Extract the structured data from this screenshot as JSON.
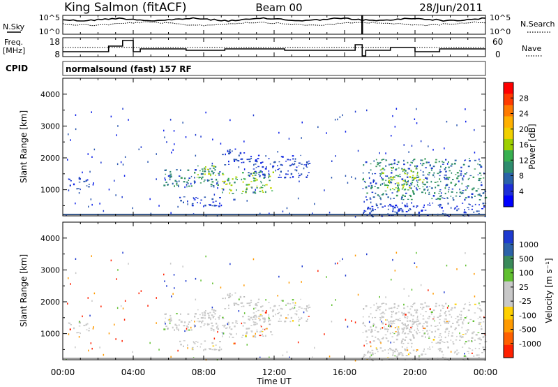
{
  "header": {
    "station": "King Salmon (fitACF)",
    "beam": "Beam 00",
    "date": "28/Jun/2011"
  },
  "noise_panel": {
    "left_label": "N.Sky",
    "right_label": "N.Search",
    "left_ticks": [
      "10^5",
      "10^0"
    ],
    "right_ticks": [
      "10^5",
      "10^0"
    ]
  },
  "freq_panel": {
    "left_label_1": "Freq.",
    "left_label_2": "[MHz]",
    "right_label": "Nave",
    "left_ticks": [
      "18",
      "8"
    ],
    "right_ticks": [
      "60",
      "0"
    ]
  },
  "cpid": {
    "label": "CPID",
    "program": "normalsound (fast) 157 RF"
  },
  "power_panel": {
    "ylabel": "Slant Range [km]",
    "yticks": [
      "4000",
      "3000",
      "2000",
      "1000"
    ],
    "cbar_label": "Power [dB]",
    "cbar_ticks": [
      "28",
      "24",
      "20",
      "16",
      "12",
      "8",
      "4"
    ],
    "cbar_colors": [
      "#ff0000",
      "#ff3b00",
      "#ff7a00",
      "#ffb000",
      "#f0d000",
      "#9ed000",
      "#38b050",
      "#2e8c6e",
      "#2a62a8",
      "#1e2fd8",
      "#0000ff"
    ]
  },
  "velocity_panel": {
    "ylabel": "Slant Range [km]",
    "yticks": [
      "4000",
      "3000",
      "2000",
      "1000"
    ],
    "cbar_label": "Velocity [m s⁻¹]",
    "cbar_ticks": [
      "1000",
      "500",
      "100",
      "25",
      "-25",
      "-100",
      "-500",
      "-1000"
    ],
    "cbar_colors": [
      "#1e3ad0",
      "#2c62a8",
      "#3a8a5a",
      "#60c030",
      "#c8c8c8",
      "#c8c8c8",
      "#ffd000",
      "#ff9a00",
      "#ff6000",
      "#ff2000"
    ]
  },
  "time_axis": {
    "label": "Time UT",
    "ticks": [
      "00:00",
      "04:00",
      "08:00",
      "12:00",
      "16:00",
      "20:00",
      "00:00"
    ]
  },
  "chart_data": {
    "type": "heatmap",
    "title": "King Salmon (fitACF)",
    "x_range_hours": [
      0,
      24
    ],
    "y_range_km": [
      180,
      4500
    ],
    "xlabel": "Time UT",
    "ylabel": "Slant Range [km]",
    "echo_regions": [
      {
        "t": [
          5.7,
          8.9
        ],
        "r": [
          1100,
          1700
        ],
        "power": "medium"
      },
      {
        "t": [
          7.6,
          9.0
        ],
        "r": [
          1400,
          1800
        ],
        "power": "high"
      },
      {
        "t": [
          8.9,
          12.0
        ],
        "r": [
          900,
          1600
        ],
        "power": "high"
      },
      {
        "t": [
          9.0,
          10.5
        ],
        "r": [
          1800,
          2300
        ],
        "power": "low"
      },
      {
        "t": [
          10.5,
          14.0
        ],
        "r": [
          1400,
          2100
        ],
        "power": "low"
      },
      {
        "t": [
          6.5,
          9.0
        ],
        "r": [
          500,
          800
        ],
        "power": "low"
      },
      {
        "t": [
          0.3,
          1.5
        ],
        "r": [
          1000,
          1400
        ],
        "power": "low"
      },
      {
        "t": [
          17.0,
          24.0
        ],
        "r": [
          700,
          2000
        ],
        "power": "medium"
      },
      {
        "t": [
          18.0,
          20.5
        ],
        "r": [
          1000,
          1700
        ],
        "power": "high"
      },
      {
        "t": [
          17.0,
          24.0
        ],
        "r": [
          180,
          600
        ],
        "power": "low"
      }
    ]
  }
}
